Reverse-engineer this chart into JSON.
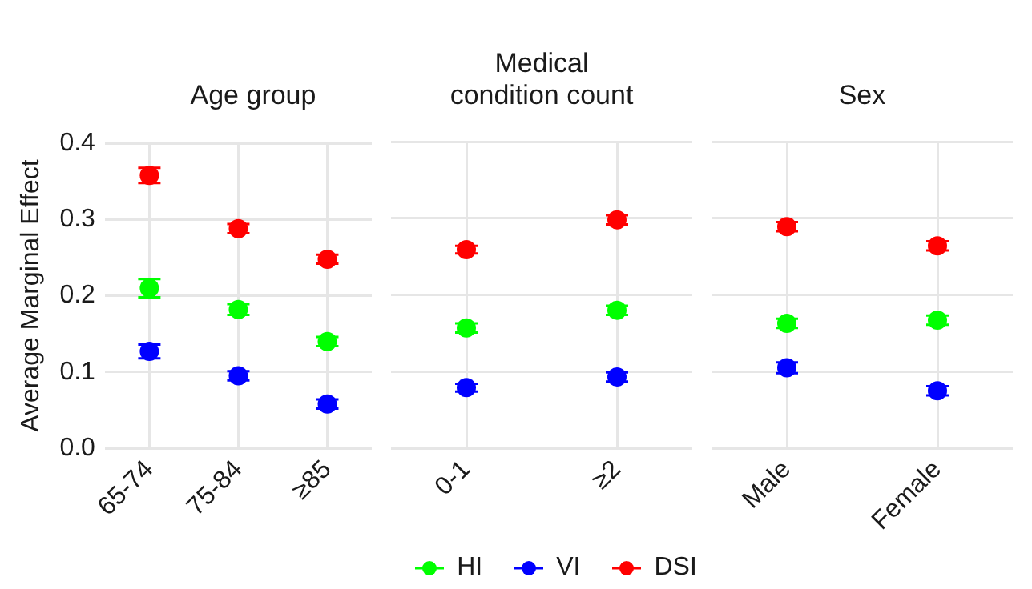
{
  "chart_data": [
    {
      "type": "scatter",
      "title": "Age group",
      "ylabel": "Average Marginal Effect",
      "categories": [
        "65-74",
        "75-84",
        "≥85"
      ],
      "ylim": [
        0,
        0.4
      ],
      "legend": "bottom",
      "yticks": [
        {
          "value": 0,
          "label": "0.0"
        },
        0.1,
        0.2,
        0.3,
        0.4
      ],
      "grid": true,
      "marker": "circle",
      "series": [
        {
          "name": "HI",
          "color": "#00ff00",
          "values": [
            0.21,
            0.182,
            0.14
          ],
          "errors": [
            0.012,
            0.007,
            0.006
          ]
        },
        {
          "name": "VI",
          "color": "#0000ff",
          "values": [
            0.127,
            0.095,
            0.058
          ],
          "errors": [
            0.009,
            0.006,
            0.006
          ]
        },
        {
          "name": "DSI",
          "color": "#ff0000",
          "values": [
            0.358,
            0.288,
            0.248
          ],
          "errors": [
            0.01,
            0.006,
            0.006
          ]
        }
      ]
    },
    {
      "type": "scatter",
      "title": "Medical condition count",
      "categories": [
        "0-1",
        "≥2"
      ],
      "ylim": [
        0,
        0.4
      ],
      "yticks": [
        0,
        0.1,
        0.2,
        0.3,
        0.4
      ],
      "grid": true,
      "marker": "circle",
      "tick_labels": "x",
      "series": [
        {
          "color": "#00ff00",
          "values": [
            0.157,
            0.18
          ],
          "errors": [
            0.006,
            0.006
          ]
        },
        {
          "color": "#0000ff",
          "values": [
            0.079,
            0.093
          ],
          "errors": [
            0.005,
            0.006
          ]
        },
        {
          "color": "#ff0000",
          "values": [
            0.259,
            0.298
          ],
          "errors": [
            0.005,
            0.006
          ]
        }
      ]
    },
    {
      "type": "scatter",
      "title": "Sex",
      "categories": [
        "Male",
        "Female"
      ],
      "ylim": [
        0,
        0.4
      ],
      "yticks": [
        0,
        0.1,
        0.2,
        0.3,
        0.4
      ],
      "grid": true,
      "marker": "circle",
      "tick_labels": "x",
      "series": [
        {
          "color": "#00ff00",
          "values": [
            0.163,
            0.167
          ],
          "errors": [
            0.006,
            0.006
          ]
        },
        {
          "color": "#0000ff",
          "values": [
            0.105,
            0.075
          ],
          "errors": [
            0.007,
            0.006
          ]
        },
        {
          "color": "#ff0000",
          "values": [
            0.289,
            0.264
          ],
          "errors": [
            0.006,
            0.006
          ]
        }
      ]
    }
  ]
}
